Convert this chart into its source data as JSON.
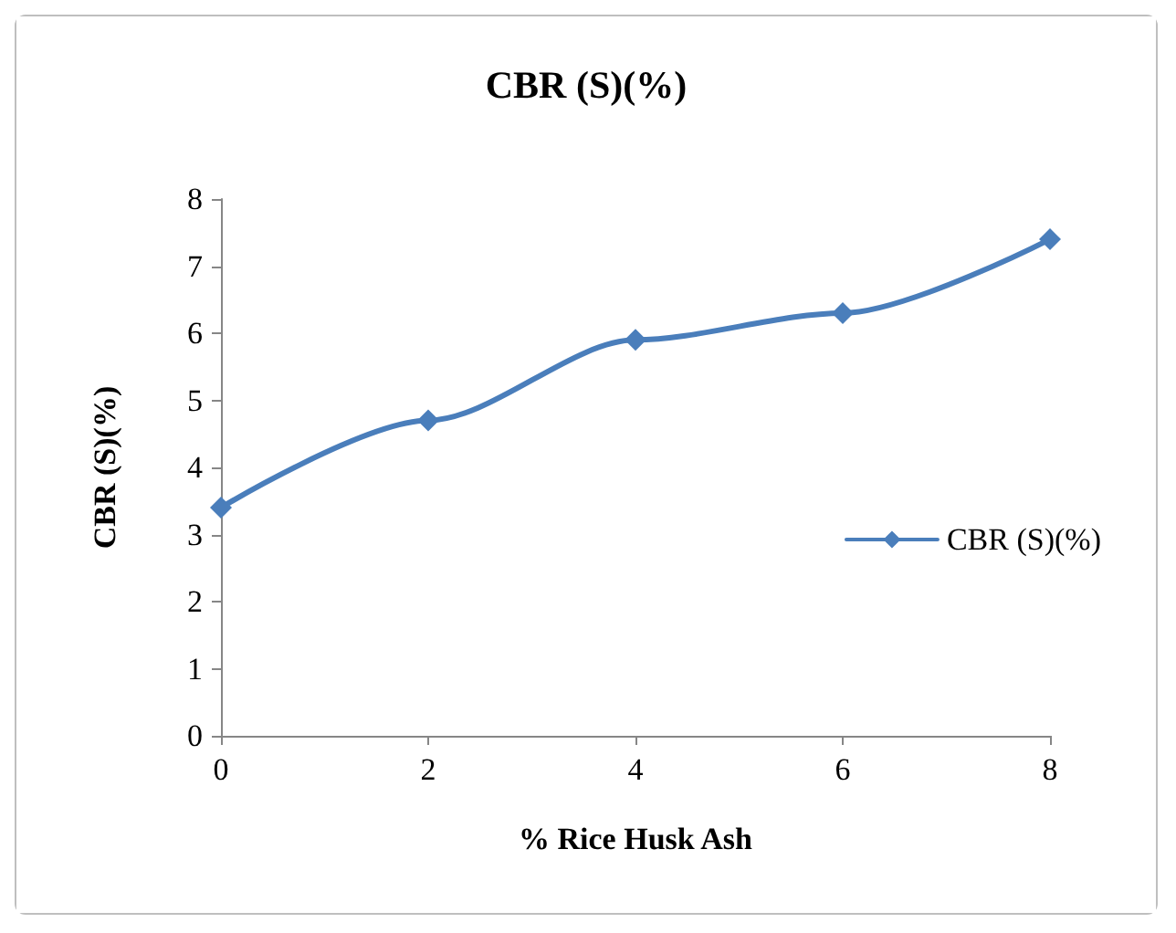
{
  "chart_data": {
    "type": "line",
    "title": "CBR (S)(%)",
    "xlabel": "% Rice Husk Ash",
    "ylabel": "CBR (S)(%)",
    "x": [
      0,
      2,
      4,
      6,
      8
    ],
    "series": [
      {
        "name": "CBR (S)(%)",
        "color": "#4a7ebb",
        "values": [
          3.4,
          4.7,
          5.9,
          6.3,
          7.4
        ]
      }
    ],
    "xlim": [
      0,
      8
    ],
    "xticks": [
      0,
      2,
      4,
      6,
      8
    ],
    "ylim": [
      0,
      8
    ],
    "yticks": [
      0,
      1,
      2,
      3,
      4,
      5,
      6,
      7,
      8
    ],
    "grid": false,
    "legend": "right",
    "marker": "diamond",
    "line_style": "solid"
  }
}
